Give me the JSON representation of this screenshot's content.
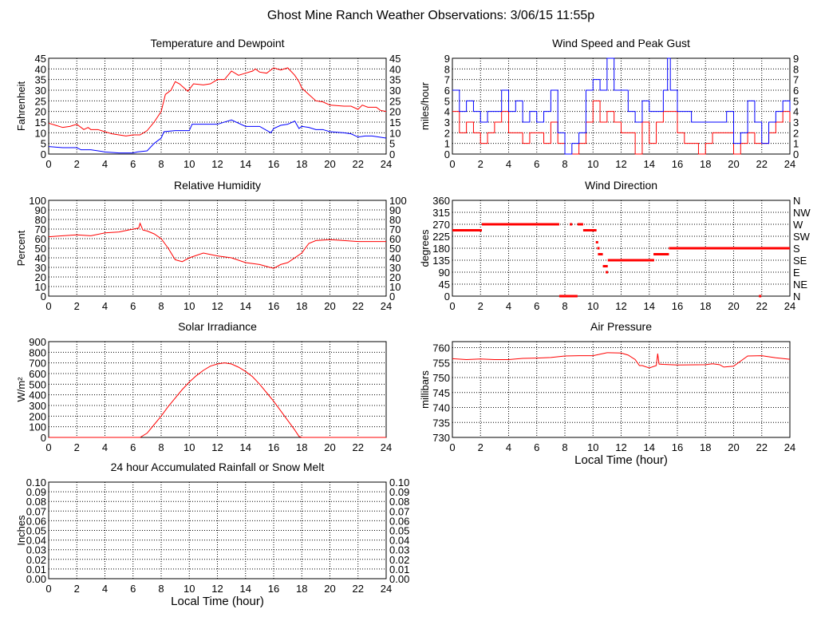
{
  "title": "Ghost Mine Ranch Weather Observations: 3/06/15 11:55p",
  "colors": {
    "primary": "#ff0000",
    "secondary": "#0000ff",
    "grid": "#000000"
  },
  "chart_data": [
    {
      "id": "temperature",
      "type": "line",
      "title": "Temperature and Dewpoint",
      "ylabel": "Fahrenheit",
      "xlabel": "",
      "xlim": [
        0,
        24
      ],
      "xticks": [
        0,
        2,
        4,
        6,
        8,
        10,
        12,
        14,
        16,
        18,
        20,
        22,
        24
      ],
      "ylim": [
        0,
        45
      ],
      "yticks": [
        0,
        5,
        10,
        15,
        20,
        25,
        30,
        35,
        40,
        45
      ],
      "right_ticks": [
        "0",
        "5",
        "10",
        "15",
        "20",
        "25",
        "30",
        "35",
        "40",
        "45"
      ],
      "grid": true,
      "series": [
        {
          "color": "#ff0000",
          "x": [
            0,
            0.5,
            1,
            1.5,
            2,
            2.5,
            2.8,
            3,
            3.5,
            4,
            4.5,
            5,
            5.5,
            6,
            6.5,
            7,
            7.5,
            8,
            8.3,
            8.7,
            9,
            9.3,
            9.9,
            10.3,
            11,
            11.5,
            12,
            12.5,
            13,
            13.5,
            14,
            14.5,
            14.7,
            15,
            15.5,
            16,
            16.5,
            17,
            17.5,
            17.8,
            18,
            18.5,
            19,
            19.5,
            20,
            21,
            21.5,
            22,
            22.3,
            22.7,
            23.3,
            23.6,
            24
          ],
          "y": [
            14.5,
            13.5,
            12.5,
            13,
            14,
            11.5,
            12.5,
            11.5,
            11.5,
            10.5,
            9.5,
            9,
            8.5,
            9,
            9,
            11,
            15,
            20,
            28,
            30,
            34,
            33,
            29.5,
            33,
            32.5,
            33,
            35,
            35,
            39,
            37,
            38,
            39,
            40,
            38.5,
            38,
            40.5,
            39.5,
            40.5,
            37,
            34,
            31,
            28,
            25,
            24.5,
            23,
            22.5,
            22.5,
            21,
            23,
            22,
            22,
            20.5,
            20
          ]
        },
        {
          "color": "#0000ff",
          "x": [
            0,
            1,
            2,
            2.3,
            3,
            4,
            5,
            6,
            6.3,
            7,
            7.5,
            8,
            8.2,
            9,
            10,
            10.2,
            11,
            12,
            13,
            14,
            15,
            15.8,
            16,
            16.5,
            17,
            17.5,
            17.8,
            18,
            18.5,
            19,
            19.5,
            20,
            21,
            21.5,
            22,
            22.5,
            23,
            24
          ],
          "y": [
            3.5,
            3,
            3,
            2,
            2,
            1,
            0.5,
            0.5,
            1,
            1.5,
            5,
            7.5,
            10.5,
            11,
            11,
            14,
            14,
            14,
            16,
            13,
            13,
            10,
            12,
            13.5,
            14,
            15.5,
            12,
            13,
            12.5,
            11.5,
            11.5,
            10.5,
            10,
            9.5,
            8,
            8.5,
            8.5,
            7.5
          ]
        }
      ]
    },
    {
      "id": "wind-speed",
      "type": "line",
      "title": "Wind Speed and Peak Gust",
      "ylabel": "miles/hour",
      "xlabel": "",
      "xlim": [
        0,
        24
      ],
      "xticks": [
        0,
        2,
        4,
        6,
        8,
        10,
        12,
        14,
        16,
        18,
        20,
        22,
        24
      ],
      "ylim": [
        0,
        9
      ],
      "yticks": [
        0,
        1,
        2,
        3,
        4,
        5,
        6,
        7,
        8,
        9
      ],
      "right_ticks": [
        "0",
        "1",
        "2",
        "3",
        "4",
        "5",
        "6",
        "7",
        "8",
        "9"
      ],
      "grid": true,
      "step": true,
      "series": [
        {
          "color": "#ff0000",
          "x": [
            0,
            0.5,
            1,
            1.5,
            2,
            2.5,
            3,
            3.5,
            4,
            4.5,
            5,
            5.5,
            6,
            6.5,
            7,
            7.5,
            8,
            8.5,
            9,
            9.5,
            10,
            10.5,
            11,
            11.5,
            12,
            12.5,
            13,
            13.5,
            14,
            14.5,
            15,
            15.5,
            16,
            16.5,
            17,
            17.5,
            18,
            18.5,
            19,
            19.5,
            20,
            20.5,
            21,
            21.5,
            22,
            22.5,
            23,
            23.5,
            24
          ],
          "y": [
            4,
            2,
            3,
            2,
            1,
            2,
            3,
            4,
            2,
            2,
            1,
            2,
            2,
            1,
            3,
            1,
            0,
            0,
            1,
            3,
            5,
            3,
            4,
            3,
            2,
            2,
            0,
            3,
            1,
            3,
            4,
            4,
            2,
            1,
            1,
            0,
            1,
            2,
            2,
            2,
            0,
            1,
            2,
            1,
            1,
            2,
            3,
            4,
            3
          ]
        },
        {
          "color": "#0000ff",
          "x": [
            0,
            0.5,
            1,
            1.5,
            2,
            2.5,
            3,
            3.5,
            4,
            4.5,
            5,
            5.5,
            6,
            6.5,
            7,
            7.5,
            8,
            8.5,
            9,
            9.5,
            10,
            10.5,
            11,
            11.5,
            12,
            12.5,
            13,
            13.5,
            14,
            14.5,
            15,
            15.3,
            15.5,
            16,
            16.5,
            17,
            17.5,
            18,
            18.5,
            19,
            19.5,
            20,
            20.5,
            21,
            21.5,
            22,
            22.5,
            23,
            23.5,
            24
          ],
          "y": [
            6,
            4,
            5,
            4,
            3,
            4,
            4,
            6,
            4,
            5,
            3,
            4,
            3,
            4,
            6,
            2,
            0,
            1,
            2,
            6,
            7,
            6,
            9,
            6,
            6,
            4,
            3,
            5,
            4,
            4,
            6,
            9,
            6,
            4,
            4,
            3,
            3,
            3,
            3,
            3,
            4,
            1,
            2,
            5,
            3,
            1,
            3,
            4,
            5,
            4
          ]
        }
      ]
    },
    {
      "id": "humidity",
      "type": "line",
      "title": "Relative Humidity",
      "ylabel": "Percent",
      "xlabel": "",
      "xlim": [
        0,
        24
      ],
      "xticks": [
        0,
        2,
        4,
        6,
        8,
        10,
        12,
        14,
        16,
        18,
        20,
        22,
        24
      ],
      "ylim": [
        0,
        100
      ],
      "yticks": [
        0,
        10,
        20,
        30,
        40,
        50,
        60,
        70,
        80,
        90,
        100
      ],
      "right_ticks": [
        "0",
        "10",
        "20",
        "30",
        "40",
        "50",
        "60",
        "70",
        "80",
        "90",
        "100"
      ],
      "grid": true,
      "series": [
        {
          "color": "#ff0000",
          "x": [
            0,
            1,
            2,
            3,
            4,
            5,
            6,
            6.4,
            6.5,
            6.7,
            7,
            7.5,
            8,
            8.5,
            9,
            9.5,
            10,
            11,
            12,
            13,
            14,
            15,
            16,
            16.5,
            17,
            18,
            18.5,
            19,
            20,
            21,
            22,
            23,
            24
          ],
          "y": [
            62,
            63,
            64,
            63,
            66,
            67,
            70,
            71,
            76,
            69,
            68,
            65,
            60,
            50,
            38,
            36,
            40,
            45,
            42,
            40,
            35,
            33,
            29,
            33,
            35,
            45,
            55,
            58,
            59,
            58,
            57,
            57,
            57
          ]
        }
      ]
    },
    {
      "id": "wind-direction",
      "type": "scatter",
      "title": "Wind Direction",
      "ylabel": "degrees",
      "xlabel": "",
      "xlim": [
        0,
        24
      ],
      "xticks": [
        0,
        2,
        4,
        6,
        8,
        10,
        12,
        14,
        16,
        18,
        20,
        22,
        24
      ],
      "ylim": [
        0,
        360
      ],
      "yticks": [
        0,
        45,
        90,
        135,
        180,
        225,
        270,
        315,
        360
      ],
      "right_ticks": [
        "N",
        "NE",
        "E",
        "SE",
        "S",
        "SW",
        "W",
        "NW",
        "N"
      ],
      "grid": true,
      "segments": {
        "color": "#ff0000",
        "x_start": [
          0,
          2.1,
          8.35,
          8.9,
          9.3,
          10.2,
          10.3,
          10.35,
          10.7,
          10.9,
          11.05,
          14.3,
          15.4,
          7.6,
          21.8
        ],
        "x_end": [
          2.1,
          7.6,
          8.45,
          9.3,
          10.25,
          10.35,
          10.35,
          10.7,
          11.05,
          10.95,
          14.35,
          15.4,
          24,
          8.9,
          21.95
        ],
        "y": [
          247.5,
          270,
          270,
          270,
          247.5,
          202.5,
          180,
          157.5,
          112.5,
          90,
          135,
          157.5,
          180,
          0,
          0
        ]
      }
    },
    {
      "id": "solar",
      "type": "line",
      "title": "Solar Irradiance",
      "ylabel": "W/m²",
      "xlabel": "",
      "xlim": [
        0,
        24
      ],
      "xticks": [
        0,
        2,
        4,
        6,
        8,
        10,
        12,
        14,
        16,
        18,
        20,
        22,
        24
      ],
      "ylim": [
        0,
        900
      ],
      "yticks": [
        0,
        100,
        200,
        300,
        400,
        500,
        600,
        700,
        800,
        900
      ],
      "right_ticks": [],
      "grid": true,
      "series": [
        {
          "color": "#ff0000",
          "x": [
            0,
            6.5,
            7,
            7.5,
            8,
            8.5,
            9,
            9.5,
            10,
            10.5,
            11,
            11.5,
            12,
            12.5,
            13,
            13.5,
            14,
            14.5,
            15,
            15.5,
            16,
            16.5,
            17,
            17.5,
            17.8,
            18,
            24
          ],
          "y": [
            0,
            0,
            40,
            120,
            200,
            290,
            370,
            450,
            520,
            580,
            630,
            670,
            690,
            700,
            690,
            660,
            620,
            570,
            500,
            420,
            340,
            250,
            160,
            70,
            10,
            0,
            0
          ]
        }
      ]
    },
    {
      "id": "pressure",
      "type": "line",
      "title": "Air Pressure",
      "ylabel": "millibars",
      "xlabel": "Local Time (hour)",
      "xlim": [
        0,
        24
      ],
      "xticks": [
        0,
        2,
        4,
        6,
        8,
        10,
        12,
        14,
        16,
        18,
        20,
        22,
        24
      ],
      "ylim": [
        730,
        762
      ],
      "yticks": [
        730,
        735,
        740,
        745,
        750,
        755,
        760
      ],
      "right_ticks": [],
      "grid": true,
      "series": [
        {
          "color": "#ff0000",
          "x": [
            0,
            1,
            2,
            3,
            4,
            5,
            6,
            7,
            8,
            9,
            10,
            11,
            12,
            12.5,
            13,
            13.3,
            13.5,
            14,
            14.5,
            14.6,
            14.7,
            15,
            16,
            18,
            18.5,
            19,
            19.3,
            20,
            20.5,
            21,
            22,
            23,
            24
          ],
          "y": [
            756.3,
            756,
            756.2,
            756,
            756,
            756.4,
            756.5,
            756.7,
            757.2,
            757.3,
            757.3,
            758.3,
            758.2,
            757.5,
            756,
            754,
            754,
            753.2,
            754,
            758,
            754.5,
            754.4,
            754.2,
            754.3,
            754.6,
            754.3,
            753.5,
            753.8,
            755.5,
            757.2,
            757.3,
            756.6,
            756.1
          ]
        }
      ]
    },
    {
      "id": "rainfall",
      "type": "line",
      "title": "24 hour Accumulated Rainfall or Snow Melt",
      "ylabel": "Inches",
      "xlabel": "Local Time (hour)",
      "xlim": [
        0,
        24
      ],
      "xticks": [
        0,
        2,
        4,
        6,
        8,
        10,
        12,
        14,
        16,
        18,
        20,
        22,
        24
      ],
      "ylim": [
        0,
        0.1
      ],
      "yticks": [
        0,
        0.01,
        0.02,
        0.03,
        0.04,
        0.05,
        0.06,
        0.07,
        0.08,
        0.09,
        0.1
      ],
      "ytick_labels": [
        "0.00",
        "0.01",
        "0.02",
        "0.03",
        "0.04",
        "0.05",
        "0.06",
        "0.07",
        "0.08",
        "0.09",
        "0.10"
      ],
      "right_ticks": [
        "0.00",
        "0.01",
        "0.02",
        "0.03",
        "0.04",
        "0.05",
        "0.06",
        "0.07",
        "0.08",
        "0.09",
        "0.10"
      ],
      "grid": true,
      "series": []
    }
  ]
}
